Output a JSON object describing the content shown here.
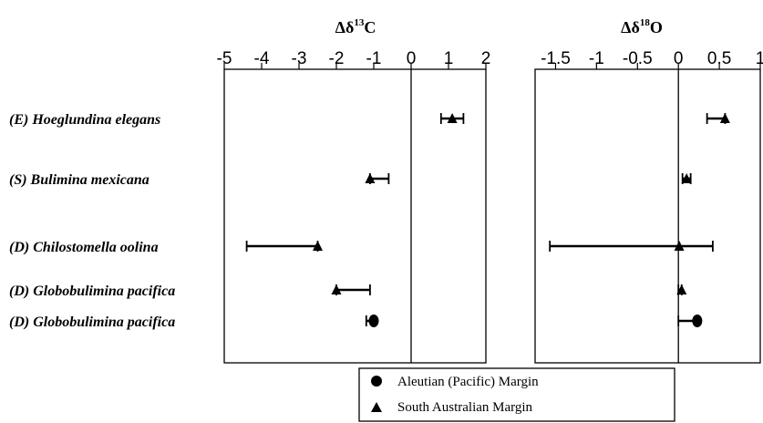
{
  "chart_data": {
    "type": "dot-with-error-bars",
    "rows": [
      "(E) Hoeglundina elegans",
      "(S) Bulimina mexicana",
      "(D) Chilostomella oolina",
      "(D) Globobulimina pacifica",
      "(D) Globobulimina pacifica"
    ],
    "legend": {
      "entries": [
        {
          "name": "Aleutian (Pacific) Margin",
          "marker": "circle"
        },
        {
          "name": "South Australian Margin",
          "marker": "triangle"
        }
      ],
      "placement": "bottom-center"
    },
    "panels": [
      {
        "title": {
          "main": "Δδ",
          "sup": "13",
          "tail": "C"
        },
        "xlim": [
          -5,
          2
        ],
        "ticks": [
          -5,
          -4,
          -3,
          -2,
          -1,
          0,
          1,
          2
        ],
        "tick_labels": [
          "-5",
          "-4",
          "-3",
          "-2",
          "-1",
          "0",
          "1",
          "2"
        ],
        "zero_line": true,
        "points": [
          {
            "row": 0,
            "marker": "triangle",
            "value": 1.1,
            "err_low": 0.8,
            "err_high": 1.4
          },
          {
            "row": 1,
            "marker": "triangle",
            "value": -1.1,
            "err_low": -1.1,
            "err_high": -0.6
          },
          {
            "row": 2,
            "marker": "triangle",
            "value": -2.5,
            "err_low": -4.4,
            "err_high": -2.5
          },
          {
            "row": 3,
            "marker": "triangle",
            "value": -2.0,
            "err_low": -2.0,
            "err_high": -1.1
          },
          {
            "row": 4,
            "marker": "circle",
            "value": -1.0,
            "err_low": -1.2,
            "err_high": -1.0
          }
        ]
      },
      {
        "title": {
          "main": "Δδ",
          "sup": "18",
          "tail": "O"
        },
        "xlim": [
          -1.75,
          1
        ],
        "ticks": [
          -1.5,
          -1,
          -0.5,
          0,
          0.5,
          1
        ],
        "tick_labels": [
          "-1.5",
          "-1",
          "-0.5",
          "0",
          "0.5",
          "1"
        ],
        "zero_line": true,
        "points": [
          {
            "row": 0,
            "marker": "triangle",
            "value": 0.57,
            "err_low": 0.35,
            "err_high": 0.57
          },
          {
            "row": 1,
            "marker": "triangle",
            "value": 0.1,
            "err_low": 0.05,
            "err_high": 0.15
          },
          {
            "row": 2,
            "marker": "triangle",
            "value": 0.01,
            "err_low": -1.57,
            "err_high": 0.42
          },
          {
            "row": 3,
            "marker": "triangle",
            "value": 0.04,
            "err_low": 0.0,
            "err_high": 0.04
          },
          {
            "row": 4,
            "marker": "circle",
            "value": 0.23,
            "err_low": 0.0,
            "err_high": 0.23
          }
        ]
      }
    ]
  }
}
